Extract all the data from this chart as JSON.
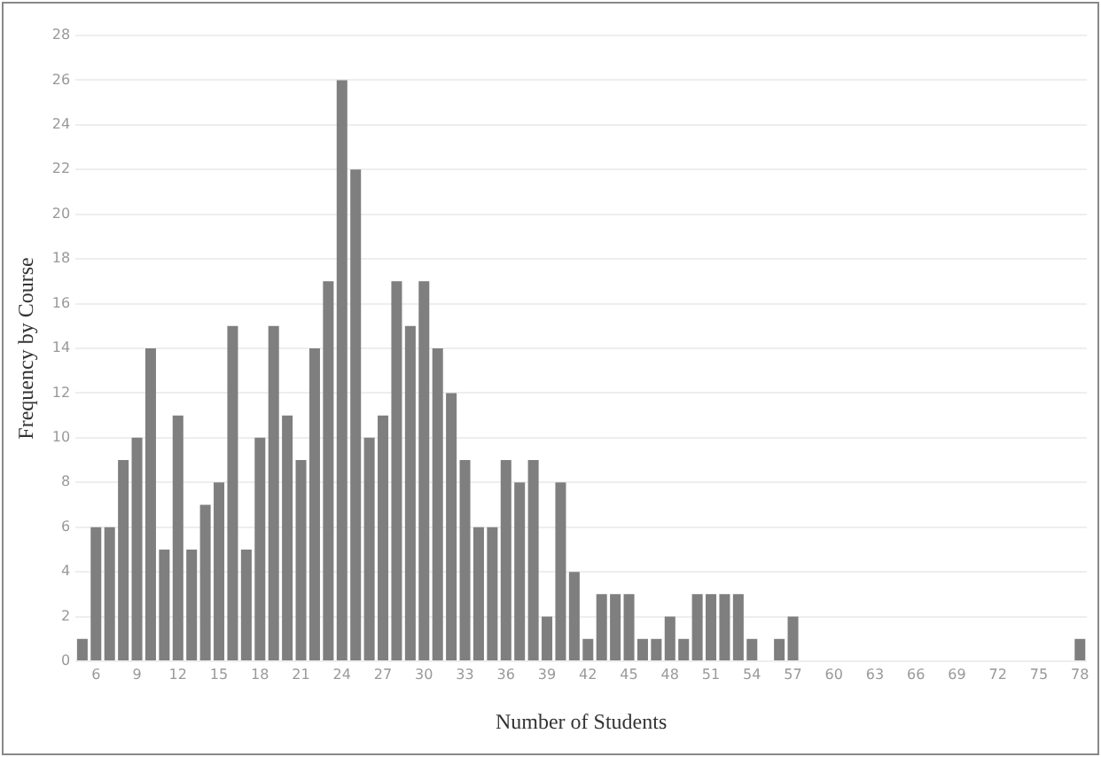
{
  "chart_data": {
    "type": "bar",
    "xlabel": "Number of Students",
    "ylabel": "Frequency by Course",
    "x": [
      5,
      6,
      7,
      8,
      9,
      10,
      11,
      12,
      13,
      14,
      15,
      16,
      17,
      18,
      19,
      20,
      21,
      22,
      23,
      24,
      25,
      26,
      27,
      28,
      29,
      30,
      31,
      32,
      33,
      34,
      35,
      36,
      37,
      38,
      39,
      40,
      41,
      42,
      43,
      44,
      45,
      46,
      47,
      48,
      49,
      50,
      51,
      52,
      53,
      54,
      55,
      56,
      57,
      58,
      59,
      60,
      61,
      62,
      63,
      64,
      65,
      66,
      67,
      68,
      69,
      70,
      71,
      72,
      73,
      74,
      75,
      76,
      77,
      78
    ],
    "values": [
      1,
      6,
      6,
      9,
      10,
      14,
      5,
      11,
      5,
      7,
      8,
      15,
      5,
      10,
      15,
      11,
      9,
      14,
      17,
      26,
      22,
      10,
      11,
      17,
      15,
      17,
      14,
      12,
      9,
      6,
      6,
      9,
      8,
      9,
      2,
      8,
      4,
      1,
      3,
      3,
      3,
      1,
      1,
      2,
      1,
      3,
      3,
      3,
      3,
      1,
      0,
      1,
      2,
      0,
      0,
      0,
      0,
      0,
      0,
      0,
      0,
      0,
      0,
      0,
      0,
      0,
      0,
      0,
      0,
      0,
      0,
      0,
      0,
      1
    ],
    "color": "#7f7f7f",
    "xlim": [
      4.5,
      78.5
    ],
    "xticks": [
      6,
      9,
      12,
      15,
      18,
      21,
      24,
      27,
      30,
      33,
      36,
      39,
      42,
      45,
      48,
      51,
      54,
      57,
      60,
      63,
      66,
      69,
      72,
      75,
      78
    ],
    "ylim": [
      0,
      28
    ],
    "yticks": [
      0,
      2,
      4,
      6,
      8,
      10,
      12,
      14,
      16,
      18,
      20,
      22,
      24,
      26,
      28
    ],
    "grid": "y"
  }
}
